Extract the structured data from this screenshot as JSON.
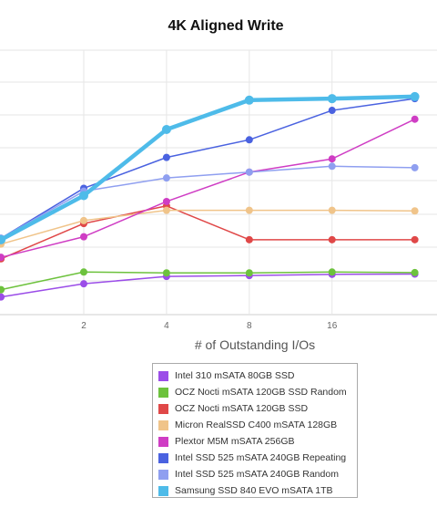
{
  "chart_data": {
    "type": "line",
    "title": "4K Aligned Write",
    "xlabel": "# of Outstanding I/Os",
    "ylabel": "",
    "x": [
      1,
      2,
      4,
      8,
      16,
      32
    ],
    "x_tick_labels": [
      "2",
      "4",
      "8",
      "16"
    ],
    "ylim": [
      0,
      9
    ],
    "grid": true,
    "legend_position": "bottom",
    "series": [
      {
        "name": "Intel 310 mSATA 80GB SSD",
        "color": "#9b4de8",
        "width": 1.5,
        "values": [
          0.6,
          1.05,
          1.3,
          1.33,
          1.37,
          1.38
        ]
      },
      {
        "name": "OCZ Nocti mSATA 120GB SSD Random",
        "color": "#6dc23d",
        "width": 1.5,
        "values": [
          0.85,
          1.45,
          1.42,
          1.42,
          1.45,
          1.43
        ]
      },
      {
        "name": "OCZ Nocti mSATA 120GB SSD",
        "color": "#e04848",
        "width": 1.5,
        "values": [
          1.9,
          3.1,
          3.7,
          2.55,
          2.55,
          2.55
        ]
      },
      {
        "name": "Micron RealSSD C400 mSATA 128GB",
        "color": "#f0c48a",
        "width": 1.5,
        "values": [
          2.4,
          3.2,
          3.55,
          3.55,
          3.55,
          3.53
        ]
      },
      {
        "name": "Plextor M5M mSATA 256GB",
        "color": "#cf3dc4",
        "width": 1.5,
        "values": [
          1.95,
          2.65,
          3.85,
          4.85,
          5.3,
          6.65
        ]
      },
      {
        "name": "Intel SSD 525 mSATA 240GB Repeating",
        "color": "#4a62e0",
        "width": 1.5,
        "values": [
          2.6,
          4.3,
          5.35,
          5.95,
          6.95,
          7.35
        ]
      },
      {
        "name": "Intel SSD 525 mSATA 240GB Random",
        "color": "#8f9ff0",
        "width": 1.5,
        "values": [
          2.6,
          4.2,
          4.65,
          4.85,
          5.05,
          5.0
        ]
      },
      {
        "name": "Samsung SSD 840 EVO mSATA 1TB",
        "color": "#4ebbe9",
        "width": 4.5,
        "values": [
          2.55,
          4.05,
          6.3,
          7.3,
          7.35,
          7.42
        ]
      }
    ]
  }
}
